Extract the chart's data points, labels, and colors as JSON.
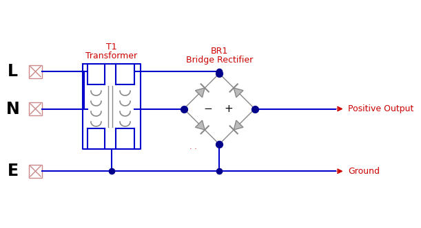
{
  "bg_color": "#ffffff",
  "wire_color": "#0000cc",
  "diode_color": "#888888",
  "dot_color": "#00008B",
  "label_color": "#cc0000",
  "text_color": "#000000",
  "component_label_T1": "T1",
  "component_label_T1_sub": "Transformer",
  "component_label_BR1": "BR1",
  "component_label_BR1_sub": "Bridge Rectifier",
  "output_label_pos": "Positive Output",
  "output_label_gnd": "Ground",
  "cross_color": "#cc8888",
  "figsize": [
    6.11,
    3.32
  ],
  "dpi": 100
}
